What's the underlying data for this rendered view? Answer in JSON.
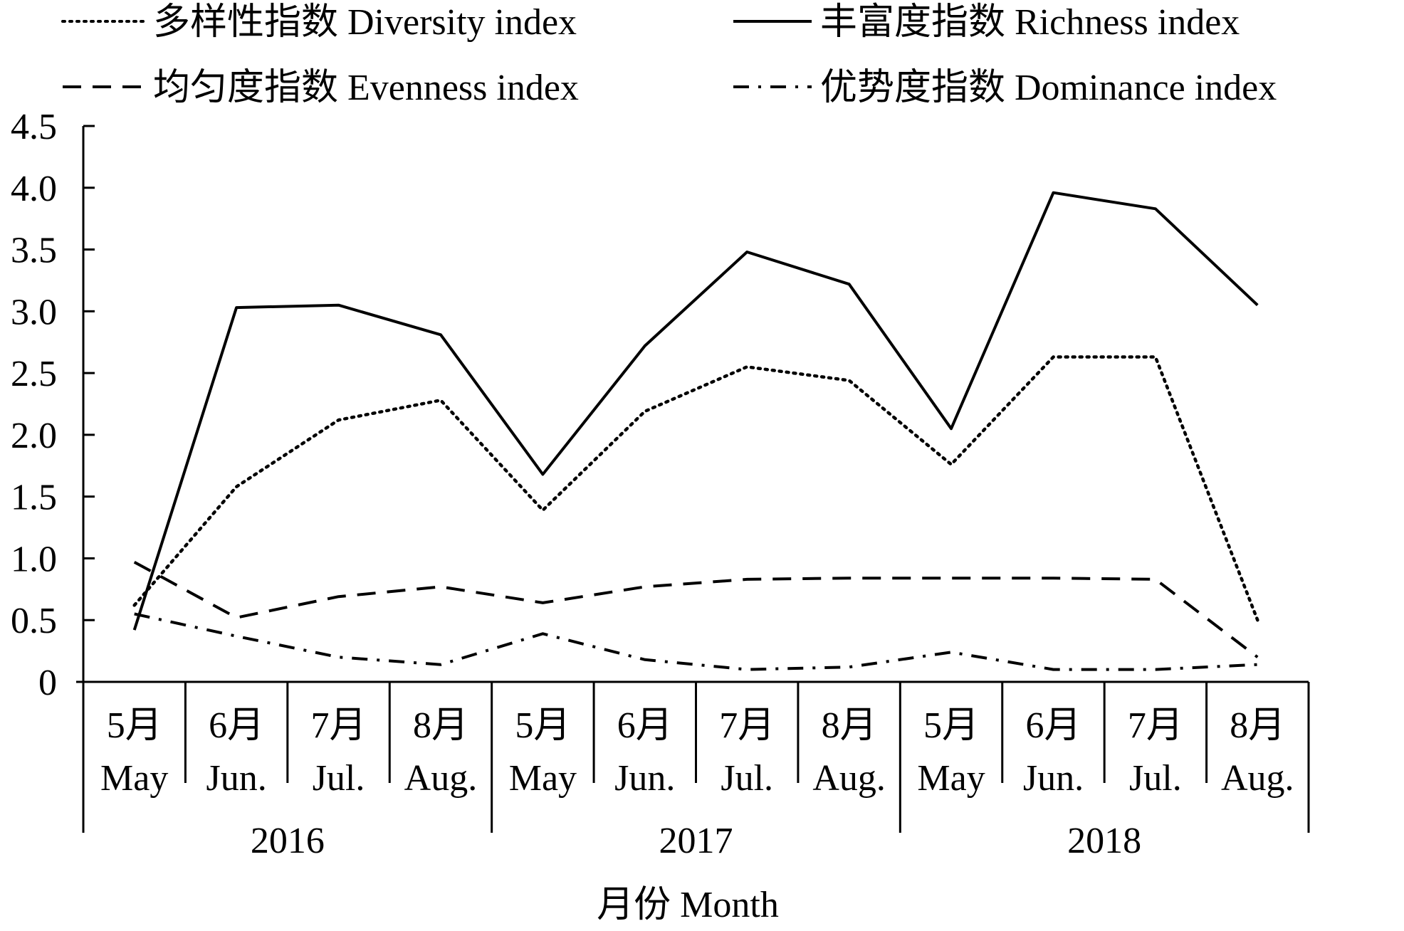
{
  "chart_data": {
    "type": "line",
    "xlabel": "月份 Month",
    "ylabel": "",
    "ylim": [
      0,
      4.5
    ],
    "yticks": [
      "0",
      "0.5",
      "1.0",
      "1.5",
      "2.0",
      "2.5",
      "3.0",
      "3.5",
      "4.0",
      "4.5"
    ],
    "grid": false,
    "legend_position": "top",
    "categories": [
      {
        "month_cn": "5月",
        "month_en": "May"
      },
      {
        "month_cn": "6月",
        "month_en": "Jun."
      },
      {
        "month_cn": "7月",
        "month_en": "Jul."
      },
      {
        "month_cn": "8月",
        "month_en": "Aug."
      },
      {
        "month_cn": "5月",
        "month_en": "May"
      },
      {
        "month_cn": "6月",
        "month_en": "Jun."
      },
      {
        "month_cn": "7月",
        "month_en": "Jul."
      },
      {
        "month_cn": "8月",
        "month_en": "Aug."
      },
      {
        "month_cn": "5月",
        "month_en": "May"
      },
      {
        "month_cn": "6月",
        "month_en": "Jun."
      },
      {
        "month_cn": "7月",
        "month_en": "Jul."
      },
      {
        "month_cn": "8月",
        "month_en": "Aug."
      }
    ],
    "years": [
      "2016",
      "2017",
      "2018"
    ],
    "series": [
      {
        "name": "多样性指数 Diversity index",
        "style": "dotted",
        "color": "#000000",
        "values": [
          0.62,
          1.58,
          2.12,
          2.28,
          1.39,
          2.19,
          2.55,
          2.44,
          1.76,
          2.63,
          2.63,
          0.5
        ]
      },
      {
        "name": "丰富度指数 Richness index",
        "style": "solid",
        "color": "#000000",
        "values": [
          0.42,
          3.03,
          3.05,
          2.81,
          1.68,
          2.72,
          3.48,
          3.22,
          2.05,
          3.96,
          3.83,
          3.05
        ]
      },
      {
        "name": "均匀度指数 Evenness index",
        "style": "dashed",
        "color": "#000000",
        "values": [
          0.97,
          0.52,
          0.69,
          0.77,
          0.64,
          0.77,
          0.83,
          0.84,
          0.84,
          0.84,
          0.83,
          0.2
        ]
      },
      {
        "name": "优势度指数 Dominance index",
        "style": "dashdot",
        "color": "#000000",
        "values": [
          0.55,
          0.37,
          0.2,
          0.14,
          0.39,
          0.18,
          0.1,
          0.12,
          0.24,
          0.1,
          0.1,
          0.14
        ]
      }
    ]
  }
}
